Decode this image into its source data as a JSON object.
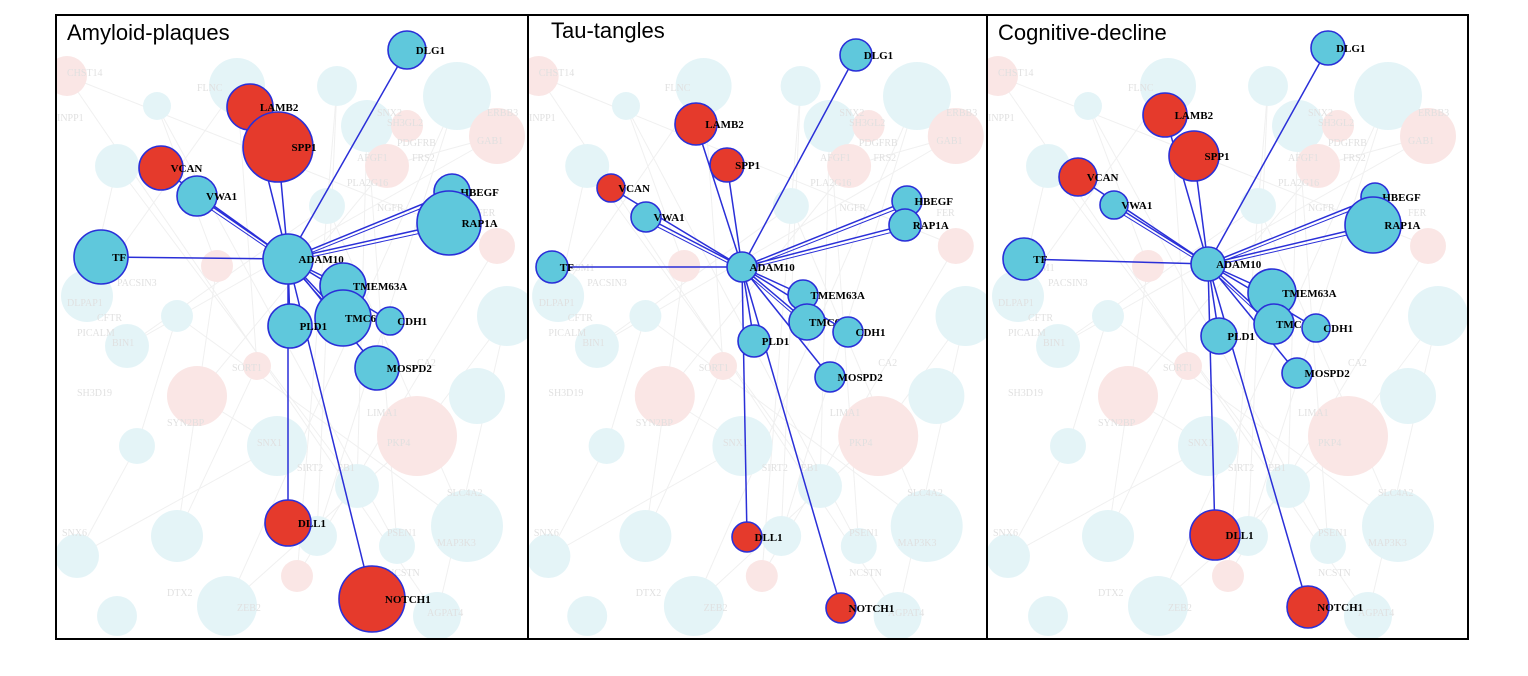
{
  "colors": {
    "case_fill": "#e53a2c",
    "control_fill": "#5fc8dc",
    "node_stroke": "#2a2fd8",
    "edge": "#2a2fd8",
    "bg_blue": "#cfecf2",
    "bg_red": "#f6d2d0",
    "bg_edge": "#e4e4e4"
  },
  "background_labels": [
    "CHST14",
    "FLNC",
    "SNX2",
    "ERBB3",
    "PDGFRB",
    "SH3GL2",
    "GAB1",
    "AFGF1",
    "FRS2",
    "PLA2G16",
    "NGFR",
    "FER",
    "SORT1",
    "CA2",
    "LIMA1",
    "PKP4",
    "SNX1",
    "SIRT2",
    "EB1",
    "SLC4A2",
    "PSEN1",
    "MAP3K3",
    "NCSTN",
    "SNX6",
    "DTX2",
    "AGPAT4",
    "ZEB2",
    "SH3D19",
    "SYN2BP",
    "BIN1",
    "PICALM",
    "DLPAP1",
    "CFTR",
    "PACSIN3",
    "DSM1",
    "INPP1"
  ],
  "panels": [
    {
      "title": "Amyloid-plaques",
      "nodes": [
        {
          "id": "DLG1",
          "type": "blue",
          "size": 19
        },
        {
          "id": "LAMB2",
          "type": "red",
          "size": 23
        },
        {
          "id": "SPP1",
          "type": "red",
          "size": 35
        },
        {
          "id": "VCAN",
          "type": "red",
          "size": 22
        },
        {
          "id": "VWA1",
          "type": "blue",
          "size": 20
        },
        {
          "id": "HBEGF",
          "type": "blue",
          "size": 18
        },
        {
          "id": "RAP1A",
          "type": "blue",
          "size": 32
        },
        {
          "id": "TF",
          "type": "blue",
          "size": 27
        },
        {
          "id": "ADAM10",
          "type": "blue",
          "size": 25
        },
        {
          "id": "TMEM63A",
          "type": "blue",
          "size": 23
        },
        {
          "id": "TMC6",
          "type": "blue",
          "size": 28
        },
        {
          "id": "CDH1",
          "type": "blue",
          "size": 14
        },
        {
          "id": "PLD1",
          "type": "blue",
          "size": 22
        },
        {
          "id": "MOSPD2",
          "type": "blue",
          "size": 22
        },
        {
          "id": "DLL1",
          "type": "red",
          "size": 23
        },
        {
          "id": "NOTCH1",
          "type": "red",
          "size": 33
        }
      ]
    },
    {
      "title": "Tau-tangles",
      "nodes": [
        {
          "id": "DLG1",
          "type": "blue",
          "size": 16
        },
        {
          "id": "LAMB2",
          "type": "red",
          "size": 21
        },
        {
          "id": "SPP1",
          "type": "red",
          "size": 17
        },
        {
          "id": "VCAN",
          "type": "red",
          "size": 14
        },
        {
          "id": "VWA1",
          "type": "blue",
          "size": 15
        },
        {
          "id": "HBEGF",
          "type": "blue",
          "size": 15
        },
        {
          "id": "RAP1A",
          "type": "blue",
          "size": 16
        },
        {
          "id": "TF",
          "type": "blue",
          "size": 16
        },
        {
          "id": "ADAM10",
          "type": "blue",
          "size": 15
        },
        {
          "id": "TMEM63A",
          "type": "blue",
          "size": 15
        },
        {
          "id": "TMC6",
          "type": "blue",
          "size": 18
        },
        {
          "id": "CDH1",
          "type": "blue",
          "size": 15
        },
        {
          "id": "PLD1",
          "type": "blue",
          "size": 16
        },
        {
          "id": "MOSPD2",
          "type": "blue",
          "size": 15
        },
        {
          "id": "DLL1",
          "type": "red",
          "size": 15
        },
        {
          "id": "NOTCH1",
          "type": "red",
          "size": 15
        }
      ]
    },
    {
      "title": "Cognitive-decline",
      "nodes": [
        {
          "id": "DLG1",
          "type": "blue",
          "size": 17
        },
        {
          "id": "LAMB2",
          "type": "red",
          "size": 22
        },
        {
          "id": "SPP1",
          "type": "red",
          "size": 25
        },
        {
          "id": "VCAN",
          "type": "red",
          "size": 19
        },
        {
          "id": "VWA1",
          "type": "blue",
          "size": 14
        },
        {
          "id": "HBEGF",
          "type": "blue",
          "size": 14
        },
        {
          "id": "RAP1A",
          "type": "blue",
          "size": 28
        },
        {
          "id": "TF",
          "type": "blue",
          "size": 21
        },
        {
          "id": "ADAM10",
          "type": "blue",
          "size": 17
        },
        {
          "id": "TMEM63A",
          "type": "blue",
          "size": 24
        },
        {
          "id": "TMC6",
          "type": "blue",
          "size": 20
        },
        {
          "id": "CDH1",
          "type": "blue",
          "size": 14
        },
        {
          "id": "PLD1",
          "type": "blue",
          "size": 18
        },
        {
          "id": "MOSPD2",
          "type": "blue",
          "size": 15
        },
        {
          "id": "DLL1",
          "type": "red",
          "size": 25
        },
        {
          "id": "NOTCH1",
          "type": "red",
          "size": 21
        }
      ]
    }
  ]
}
